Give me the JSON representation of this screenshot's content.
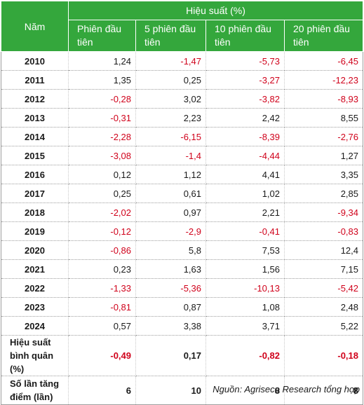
{
  "header": {
    "year_label": "Năm",
    "group_label": "Hiệu suất (%)",
    "columns": [
      "Phiên đầu tiên",
      "5 phiên đầu tiên",
      "10 phiên đầu tiên",
      "20 phiên đầu tiên"
    ]
  },
  "rows": [
    {
      "year": "2010",
      "values": [
        "1,24",
        "-1,47",
        "-5,73",
        "-6,45"
      ]
    },
    {
      "year": "2011",
      "values": [
        "1,35",
        "0,25",
        "-3,27",
        "-12,23"
      ]
    },
    {
      "year": "2012",
      "values": [
        "-0,28",
        "3,02",
        "-3,82",
        "-8,93"
      ]
    },
    {
      "year": "2013",
      "values": [
        "-0,31",
        "2,23",
        "2,42",
        "8,55"
      ]
    },
    {
      "year": "2014",
      "values": [
        "-2,28",
        "-6,15",
        "-8,39",
        "-2,76"
      ]
    },
    {
      "year": "2015",
      "values": [
        "-3,08",
        "-1,4",
        "-4,44",
        "1,27"
      ]
    },
    {
      "year": "2016",
      "values": [
        "0,12",
        "1,12",
        "4,41",
        "3,35"
      ]
    },
    {
      "year": "2017",
      "values": [
        "0,25",
        "0,61",
        "1,02",
        "2,85"
      ]
    },
    {
      "year": "2018",
      "values": [
        "-2,02",
        "0,97",
        "2,21",
        "-9,34"
      ]
    },
    {
      "year": "2019",
      "values": [
        "-0,12",
        "-2,9",
        "-0,41",
        "-0,83"
      ]
    },
    {
      "year": "2020",
      "values": [
        "-0,86",
        "5,8",
        "7,53",
        "12,4"
      ]
    },
    {
      "year": "2021",
      "values": [
        "0,23",
        "1,63",
        "1,56",
        "7,15"
      ]
    },
    {
      "year": "2022",
      "values": [
        "-1,33",
        "-5,36",
        "-10,13",
        "-5,42"
      ]
    },
    {
      "year": "2023",
      "values": [
        "-0,81",
        "0,87",
        "1,08",
        "2,48"
      ]
    },
    {
      "year": "2024",
      "values": [
        "0,57",
        "3,38",
        "3,71",
        "5,22"
      ]
    }
  ],
  "summary": [
    {
      "label": "Hiệu suất bình quân (%)",
      "values": [
        "-0,49",
        "0,17",
        "-0,82",
        "-0,18"
      ]
    },
    {
      "label": "Số lần tăng điểm (lần)",
      "values": [
        "6",
        "10",
        "8",
        "8"
      ]
    }
  ],
  "source": "Nguồn: Agriseco Research tổng hợp",
  "colors": {
    "header_bg": "#34a73c",
    "negative": "#d0021b"
  }
}
